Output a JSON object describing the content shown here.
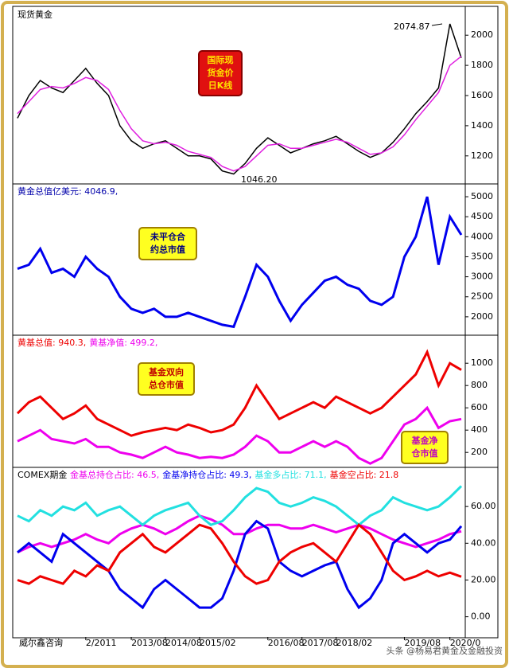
{
  "chart_data": [
    {
      "type": "line",
      "title": "现货黄金",
      "series": [
        {
          "name": null,
          "color": "#000000",
          "values": [
            1450,
            1600,
            1700,
            1650,
            1620,
            1700,
            1780,
            1680,
            1600,
            1400,
            1300,
            1250,
            1280,
            1300,
            1250,
            1200,
            1200,
            1180,
            1100,
            1080,
            1150,
            1250,
            1320,
            1270,
            1220,
            1250,
            1280,
            1300,
            1330,
            1280,
            1230,
            1190,
            1220,
            1290,
            1380,
            1480,
            1560,
            1650,
            2074.87,
            1850
          ]
        },
        {
          "name": null,
          "color": "#e020e0",
          "values": [
            1480,
            1560,
            1640,
            1660,
            1650,
            1680,
            1720,
            1700,
            1640,
            1500,
            1380,
            1300,
            1280,
            1290,
            1270,
            1230,
            1210,
            1190,
            1130,
            1100,
            1130,
            1200,
            1270,
            1280,
            1250,
            1250,
            1270,
            1290,
            1310,
            1290,
            1250,
            1210,
            1220,
            1260,
            1340,
            1440,
            1530,
            1620,
            1800,
            1860
          ]
        }
      ],
      "ylim": [
        1030,
        2170
      ],
      "yticks": [
        1200,
        1400,
        1600,
        1800,
        2000
      ],
      "annotations": [
        "2074.87",
        "1046.20"
      ],
      "note": [
        "国际现",
        "货金价",
        "日K线"
      ]
    },
    {
      "type": "line",
      "title": "黄金总值亿美元: 4046.9,",
      "series": [
        {
          "name": null,
          "color": "#0000ee",
          "values": [
            3200,
            3300,
            3700,
            3100,
            3200,
            3000,
            3500,
            3200,
            3000,
            2500,
            2200,
            2100,
            2200,
            2000,
            2000,
            2100,
            2000,
            1900,
            1800,
            1750,
            2500,
            3300,
            3000,
            2400,
            1900,
            2300,
            2600,
            2900,
            3000,
            2800,
            2700,
            2400,
            2300,
            2500,
            3500,
            4000,
            5000,
            3300,
            4500,
            4046.9
          ]
        }
      ],
      "ylim": [
        1560,
        5260
      ],
      "yticks": [
        2000,
        2500,
        3000,
        3500,
        4000,
        4500,
        5000
      ],
      "note": [
        "未平仓合",
        "约总市值"
      ]
    },
    {
      "type": "line",
      "series": [
        {
          "name": "黄基总值: 940.3,",
          "color": "#ee0000",
          "values": [
            550,
            650,
            700,
            600,
            500,
            550,
            620,
            500,
            450,
            400,
            350,
            380,
            400,
            420,
            400,
            450,
            420,
            380,
            400,
            450,
            600,
            800,
            650,
            500,
            550,
            600,
            650,
            600,
            700,
            650,
            600,
            550,
            600,
            700,
            800,
            900,
            1100,
            800,
            1000,
            940.3
          ]
        },
        {
          "name": "黄基净值: 499.2,",
          "color": "#ee00ee",
          "values": [
            300,
            350,
            400,
            320,
            300,
            280,
            320,
            250,
            250,
            200,
            180,
            150,
            200,
            250,
            200,
            180,
            150,
            160,
            150,
            180,
            250,
            350,
            300,
            200,
            200,
            250,
            300,
            250,
            300,
            250,
            150,
            100,
            150,
            300,
            450,
            500,
            600,
            420,
            480,
            499.2
          ]
        }
      ],
      "ylim": [
        80,
        1230
      ],
      "yticks": [
        200,
        400,
        600,
        800,
        1000
      ],
      "note": [
        "基金双向",
        "总仓市值"
      ],
      "note2": [
        "基金净",
        "仓市值"
      ]
    },
    {
      "type": "line",
      "title": "COMEX期金",
      "categories": [
        null,
        null,
        null,
        null,
        null,
        null,
        "2/2011",
        null,
        null,
        null,
        "2013/08",
        null,
        null,
        "2014/08",
        null,
        null,
        "2015/02",
        null,
        null,
        null,
        null,
        null,
        "2016/08",
        null,
        null,
        "2017/08",
        null,
        null,
        "2018/02",
        null,
        null,
        null,
        null,
        null,
        "2019/08",
        null,
        null,
        null,
        "2020/0",
        null
      ],
      "footer": "威尔鑫咨询",
      "series": [
        {
          "name": "金基总持仓占比: 46.5,",
          "color": "#ee00ee",
          "values": [
            35,
            38,
            40,
            38,
            40,
            42,
            45,
            42,
            40,
            45,
            48,
            50,
            48,
            45,
            48,
            52,
            55,
            53,
            50,
            45,
            45,
            48,
            50,
            50,
            48,
            48,
            50,
            48,
            46,
            48,
            50,
            48,
            45,
            42,
            40,
            38,
            40,
            42,
            45,
            46.5
          ]
        },
        {
          "name": "金基净持仓占比: 49.3,",
          "color": "#0000ee",
          "values": [
            35,
            40,
            35,
            30,
            45,
            40,
            35,
            30,
            25,
            15,
            10,
            5,
            15,
            20,
            15,
            10,
            5,
            5,
            10,
            25,
            45,
            52,
            48,
            30,
            25,
            22,
            25,
            28,
            30,
            15,
            5,
            10,
            20,
            40,
            45,
            40,
            35,
            40,
            42,
            49.3
          ]
        },
        {
          "name": "基金多占比: 71.1,",
          "color": "#22e0e0",
          "values": [
            55,
            52,
            58,
            55,
            60,
            58,
            62,
            55,
            58,
            60,
            55,
            50,
            55,
            58,
            60,
            62,
            55,
            50,
            52,
            58,
            65,
            70,
            68,
            62,
            60,
            62,
            65,
            63,
            60,
            55,
            50,
            55,
            58,
            65,
            62,
            60,
            58,
            60,
            65,
            71.1
          ]
        },
        {
          "name": "基金空占比: 21.8",
          "color": "#ee0000",
          "values": [
            20,
            18,
            22,
            20,
            18,
            25,
            22,
            28,
            25,
            35,
            40,
            45,
            38,
            35,
            40,
            45,
            50,
            48,
            40,
            30,
            22,
            18,
            20,
            30,
            35,
            38,
            40,
            35,
            30,
            40,
            50,
            45,
            35,
            25,
            20,
            22,
            25,
            22,
            24,
            21.8
          ]
        }
      ],
      "ylim": [
        -11,
        80
      ],
      "yticks": [
        {
          "value": 0,
          "label": "0.00"
        },
        {
          "value": 20,
          "label": "20.00"
        },
        {
          "value": 40,
          "label": "40.00"
        },
        {
          "value": 60,
          "label": "60.00"
        }
      ]
    }
  ],
  "watermark": "头条 @杨易君黄金及金融投资"
}
